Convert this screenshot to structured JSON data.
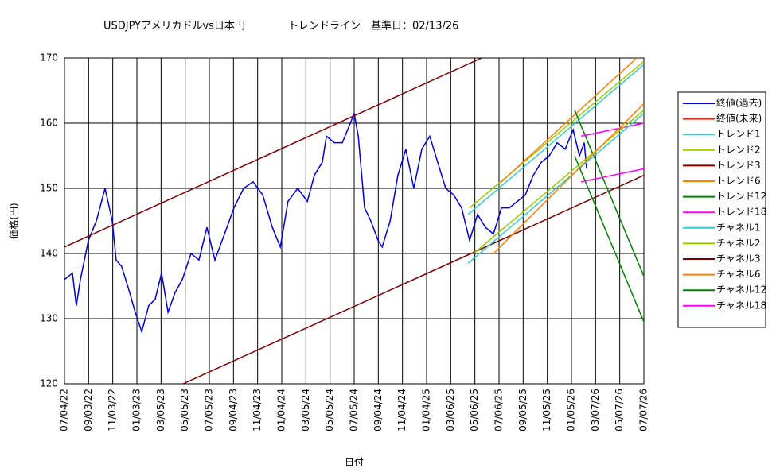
{
  "chart_data": {
    "type": "line",
    "title": "USDJPYアメリカドルvs日本円",
    "subtitle": "トレンドライン　基準日：02/13/26",
    "x_label": "日付",
    "y_label": "価格(円)",
    "xlim": [
      0,
      24
    ],
    "xticks": [
      {
        "value": 0,
        "label": "07/04/22"
      },
      {
        "value": 1,
        "label": "09/03/22"
      },
      {
        "value": 2,
        "label": "11/03/22"
      },
      {
        "value": 3,
        "label": "01/03/23"
      },
      {
        "value": 4,
        "label": "03/05/23"
      },
      {
        "value": 5,
        "label": "05/05/23"
      },
      {
        "value": 6,
        "label": "07/05/23"
      },
      {
        "value": 7,
        "label": "09/04/23"
      },
      {
        "value": 8,
        "label": "11/04/23"
      },
      {
        "value": 9,
        "label": "01/04/24"
      },
      {
        "value": 10,
        "label": "03/05/24"
      },
      {
        "value": 11,
        "label": "05/05/24"
      },
      {
        "value": 12,
        "label": "07/05/24"
      },
      {
        "value": 13,
        "label": "09/04/24"
      },
      {
        "value": 14,
        "label": "11/04/24"
      },
      {
        "value": 15,
        "label": "01/04/25"
      },
      {
        "value": 16,
        "label": "03/06/25"
      },
      {
        "value": 17,
        "label": "05/06/25"
      },
      {
        "value": 18,
        "label": "07/06/25"
      },
      {
        "value": 19,
        "label": "09/05/25"
      },
      {
        "value": 20,
        "label": "11/05/25"
      },
      {
        "value": 21,
        "label": "01/05/26"
      },
      {
        "value": 22,
        "label": "03/07/26"
      },
      {
        "value": 23,
        "label": "05/07/26"
      },
      {
        "value": 24,
        "label": "07/07/26"
      }
    ],
    "ylim": [
      120,
      170
    ],
    "yticks": [
      120,
      130,
      140,
      150,
      160,
      170
    ],
    "grid": true,
    "legend": "right",
    "series": [
      {
        "name": "終値(過去)",
        "color": "#0000dd",
        "x": [
          0,
          0.33,
          0.49,
          0.66,
          0.99,
          1.32,
          1.68,
          1.98,
          2.14,
          2.37,
          2.7,
          2.93,
          3.2,
          3.49,
          3.76,
          4.02,
          4.29,
          4.58,
          4.88,
          5.24,
          5.57,
          5.9,
          6.23,
          6.63,
          7.02,
          7.42,
          7.81,
          8.21,
          8.61,
          8.94,
          9.26,
          9.66,
          10.06,
          10.35,
          10.68,
          10.85,
          11.18,
          11.51,
          11.84,
          12,
          12.17,
          12.43,
          12.69,
          12.99,
          13.16,
          13.49,
          13.81,
          14.14,
          14.47,
          14.8,
          15.13,
          15.46,
          15.79,
          16.12,
          16.45,
          16.78,
          17.11,
          17.44,
          17.77,
          18.1,
          18.43,
          18.76,
          19.09,
          19.42,
          19.75,
          20.08,
          20.41,
          20.74,
          21.07,
          21.33,
          21.53,
          21.63
        ],
        "values": [
          136,
          137,
          132,
          136,
          142,
          145,
          150,
          145,
          139,
          138,
          134,
          131,
          128,
          132,
          133,
          137,
          131,
          134,
          136,
          140,
          139,
          144,
          139,
          143,
          147,
          150,
          151,
          149,
          144,
          141,
          148,
          150,
          148,
          152,
          154,
          158,
          157,
          157,
          160,
          161.5,
          158,
          147,
          145,
          142,
          141,
          145,
          152,
          156,
          150,
          156,
          158,
          154,
          150,
          149,
          147,
          142,
          146,
          144,
          143,
          147,
          147,
          148,
          149,
          152,
          154,
          155,
          157,
          156,
          159,
          155,
          157,
          153
        ]
      },
      {
        "name": "終値(未来)",
        "color": "#ff2200",
        "x": [],
        "values": []
      },
      {
        "name": "トレンド1",
        "color": "#33cccc",
        "x": [
          16.72,
          24
        ],
        "values": [
          146,
          169
        ]
      },
      {
        "name": "トレンド2",
        "color": "#99cc00",
        "x": [
          16.78,
          24
        ],
        "values": [
          147,
          169.5
        ]
      },
      {
        "name": "トレンド3",
        "color": "#800000",
        "x": [
          4.91,
          24
        ],
        "values": [
          120,
          152
        ]
      },
      {
        "name": "トレンド6",
        "color": "#ff8000",
        "x": [
          18.1,
          23.7
        ],
        "values": [
          151,
          170
        ]
      },
      {
        "name": "トレンド12",
        "color": "#008000",
        "x": [
          21.13,
          24
        ],
        "values": [
          162,
          136.5
        ]
      },
      {
        "name": "トレンド18",
        "color": "#ff00ff",
        "x": [
          21.4,
          24
        ],
        "values": [
          158,
          160
        ]
      },
      {
        "name": "チャネル1",
        "color": "#33cccc",
        "x": [
          16.72,
          24
        ],
        "values": [
          138.5,
          161.5
        ]
      },
      {
        "name": "チャネル2",
        "color": "#99cc00",
        "x": [
          16.95,
          24
        ],
        "values": [
          140,
          162
        ]
      },
      {
        "name": "チャネル3",
        "color": "#800000",
        "x": [
          0,
          17.28
        ],
        "values": [
          141,
          170
        ]
      },
      {
        "name": "チャネル6",
        "color": "#ff8000",
        "x": [
          17.77,
          24
        ],
        "values": [
          140,
          163
        ]
      },
      {
        "name": "チャネル12",
        "color": "#008000",
        "x": [
          21.13,
          24
        ],
        "values": [
          155,
          129.5
        ]
      },
      {
        "name": "チャネル18",
        "color": "#ff00ff",
        "x": [
          21.4,
          24
        ],
        "values": [
          151,
          153
        ]
      }
    ]
  }
}
